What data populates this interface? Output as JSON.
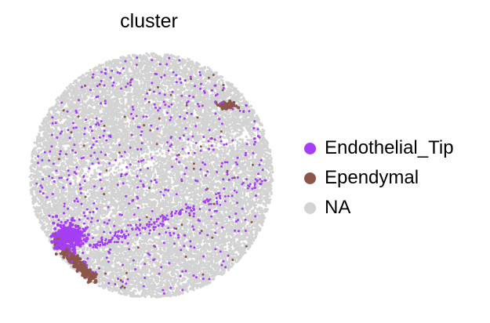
{
  "chart_data": {
    "type": "scatter",
    "title": "cluster",
    "xlabel": "",
    "ylabel": "",
    "grid": false,
    "axes_visible": false,
    "legend_position": "right",
    "series": [
      {
        "name": "Endothelial_Tip",
        "color": "#a53ef5",
        "regions": [
          {
            "kind": "scattered_in_disc",
            "count": 520,
            "point_size": 1.5
          },
          {
            "kind": "band",
            "from": [
              120,
              312
            ],
            "via": [
              205,
              282
            ],
            "to": [
              343,
              227
            ],
            "spread": 7,
            "count": 170,
            "point_size": 1.4
          },
          {
            "kind": "cluster",
            "center": [
              88,
              302
            ],
            "radius": [
              17,
              14
            ],
            "count": 260,
            "point_size": 2.0
          }
        ]
      },
      {
        "name": "Ependymal",
        "color": "#8c564b",
        "regions": [
          {
            "kind": "cluster",
            "center": [
              289,
              134
            ],
            "radius": [
              11,
              5
            ],
            "count": 60,
            "point_size": 2.0
          },
          {
            "kind": "band",
            "from": [
              70,
              305
            ],
            "via": [
              92,
              330
            ],
            "to": [
              120,
              356
            ],
            "spread": 6,
            "count": 240,
            "point_size": 2.0
          },
          {
            "kind": "scattered_in_disc",
            "count": 70,
            "point_size": 1.5
          }
        ]
      },
      {
        "name": "NA",
        "color": "#d3d3d3",
        "regions": [
          {
            "kind": "filled_disc",
            "center": [
              193,
              224
            ],
            "radius": [
              155,
              156
            ],
            "count": 17000,
            "point_size": 1.6
          }
        ]
      }
    ]
  },
  "legend": {
    "items": [
      {
        "label": "Endothelial_Tip",
        "color": "#a53ef5"
      },
      {
        "label": "Ependymal",
        "color": "#8c564b"
      },
      {
        "label": "NA",
        "color": "#d3d3d3"
      }
    ]
  }
}
